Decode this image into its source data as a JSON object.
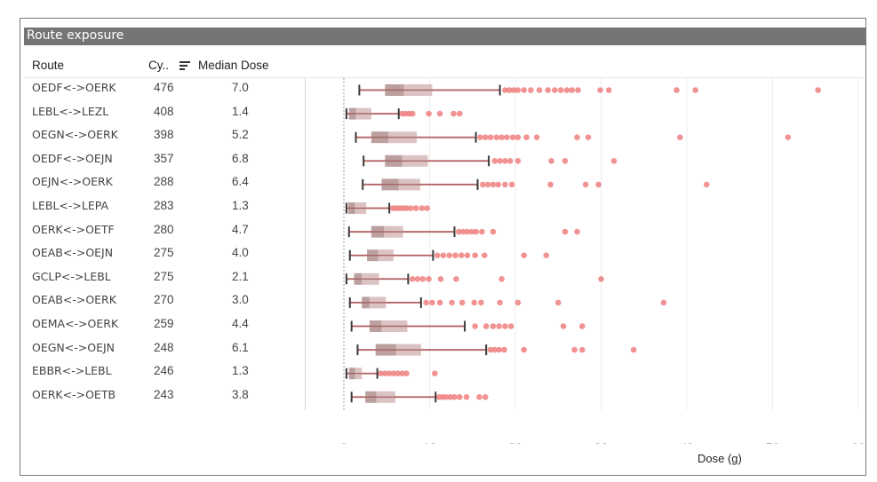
{
  "title": "Route exposure",
  "columns": {
    "route": "Route",
    "cycles": "Cy..",
    "median": "Median Dose"
  },
  "chart_data": {
    "type": "boxplot",
    "xlabel": "Dose (g)",
    "xlim": [
      0,
      60
    ],
    "xticks": [
      0,
      10,
      20,
      30,
      40,
      50,
      60
    ],
    "grid": true,
    "point_color": "#f08080",
    "box_color_dark": "#b08f8f",
    "box_color_light": "#d6b9b9",
    "whisker_color": "#3a3a3a",
    "rows": [
      {
        "route": "OEDF<->OERK",
        "cycles": "476",
        "median": "7.0",
        "whisker_low": 1.8,
        "q1": 4.8,
        "med": 7.0,
        "q3": 10.3,
        "whisker_high": 18.2,
        "outliers": [
          18.8,
          19.3,
          19.8,
          20.3,
          21,
          21.8,
          22.8,
          23.8,
          24.6,
          25.3,
          26,
          26.6,
          27.3,
          29.9,
          30.9,
          38.8,
          41,
          55.3
        ]
      },
      {
        "route": "LEBL<->LEZL",
        "cycles": "408",
        "median": "1.4",
        "whisker_low": 0.3,
        "q1": 0.6,
        "med": 1.4,
        "q3": 3.2,
        "whisker_high": 6.4,
        "outliers": [
          6.8,
          7.2,
          7.6,
          8.0,
          9.9,
          11.2,
          12.8,
          13.5
        ]
      },
      {
        "route": "OEGN<->OERK",
        "cycles": "398",
        "median": "5.2",
        "whisker_low": 1.4,
        "q1": 3.2,
        "med": 5.2,
        "q3": 8.5,
        "whisker_high": 15.4,
        "outliers": [
          15.9,
          16.5,
          17.1,
          17.8,
          18.4,
          19.0,
          19.7,
          20.3,
          21.3,
          22.5,
          27.2,
          28.5,
          39.2,
          51.8
        ]
      },
      {
        "route": "OEDF<->OEJN",
        "cycles": "357",
        "median": "6.8",
        "whisker_low": 2.3,
        "q1": 4.8,
        "med": 6.8,
        "q3": 9.8,
        "whisker_high": 16.9,
        "outliers": [
          17.6,
          18.2,
          18.8,
          19.4,
          20.3,
          24.2,
          25.8,
          31.5
        ]
      },
      {
        "route": "OEJN<->OERK",
        "cycles": "288",
        "median": "6.4",
        "whisker_low": 2.2,
        "q1": 4.4,
        "med": 6.4,
        "q3": 8.9,
        "whisker_high": 15.6,
        "outliers": [
          16.2,
          16.8,
          17.4,
          18.0,
          18.8,
          19.6,
          24.1,
          28.2,
          29.7,
          42.3
        ]
      },
      {
        "route": "LEBL<->LEPA",
        "cycles": "283",
        "median": "1.3",
        "whisker_low": 0.3,
        "q1": 0.5,
        "med": 1.3,
        "q3": 2.6,
        "whisker_high": 5.3,
        "outliers": [
          5.7,
          6.1,
          6.5,
          6.9,
          7.3,
          7.8,
          8.4,
          9.1,
          9.7
        ]
      },
      {
        "route": "OERK<->OETF",
        "cycles": "280",
        "median": "4.7",
        "whisker_low": 0.6,
        "q1": 3.2,
        "med": 4.7,
        "q3": 6.9,
        "whisker_high": 12.9,
        "outliers": [
          13.4,
          13.9,
          14.4,
          14.9,
          15.4,
          16.1,
          17.4,
          25.8,
          27.2
        ]
      },
      {
        "route": "OEAB<->OEJN",
        "cycles": "275",
        "median": "4.0",
        "whisker_low": 0.7,
        "q1": 2.7,
        "med": 4.0,
        "q3": 5.8,
        "whisker_high": 10.4,
        "outliers": [
          10.9,
          11.6,
          12.3,
          13.0,
          13.7,
          14.4,
          15.3,
          16.4,
          21.0,
          23.6
        ]
      },
      {
        "route": "GCLP<->LEBL",
        "cycles": "275",
        "median": "2.1",
        "whisker_low": 0.3,
        "q1": 1.2,
        "med": 2.1,
        "q3": 4.1,
        "whisker_high": 7.5,
        "outliers": [
          8.0,
          8.6,
          9.2,
          9.9,
          11.3,
          13.1,
          18.4,
          30.0
        ]
      },
      {
        "route": "OEAB<->OERK",
        "cycles": "270",
        "median": "3.0",
        "whisker_low": 0.7,
        "q1": 2.1,
        "med": 3.0,
        "q3": 4.9,
        "whisker_high": 9.0,
        "outliers": [
          9.6,
          10.3,
          11.2,
          12.6,
          13.8,
          15.2,
          16.0,
          18.2,
          20.3,
          25.0,
          37.3
        ]
      },
      {
        "route": "OEMA<->OERK",
        "cycles": "259",
        "median": "4.4",
        "whisker_low": 0.9,
        "q1": 3.0,
        "med": 4.4,
        "q3": 7.4,
        "whisker_high": 14.1,
        "outliers": [
          15.3,
          16.6,
          17.4,
          18.1,
          18.8,
          19.5,
          25.6,
          27.8
        ]
      },
      {
        "route": "OEGN<->OEJN",
        "cycles": "248",
        "median": "6.1",
        "whisker_low": 1.6,
        "q1": 3.7,
        "med": 6.1,
        "q3": 9.0,
        "whisker_high": 16.6,
        "outliers": [
          17.1,
          17.6,
          18.1,
          18.7,
          21.0,
          26.9,
          27.8,
          33.8
        ]
      },
      {
        "route": "EBBR<->LEBL",
        "cycles": "246",
        "median": "1.3",
        "whisker_low": 0.3,
        "q1": 0.6,
        "med": 1.3,
        "q3": 2.1,
        "whisker_high": 3.9,
        "outliers": [
          4.3,
          4.8,
          5.3,
          5.8,
          6.3,
          6.8,
          7.3,
          10.6
        ]
      },
      {
        "route": "OERK<->OETB",
        "cycles": "243",
        "median": "3.8",
        "whisker_low": 0.9,
        "q1": 2.5,
        "med": 3.8,
        "q3": 6.0,
        "whisker_high": 10.7,
        "outliers": [
          11.1,
          11.5,
          11.9,
          12.4,
          12.9,
          13.5,
          14.3,
          15.8,
          16.5
        ]
      }
    ]
  }
}
